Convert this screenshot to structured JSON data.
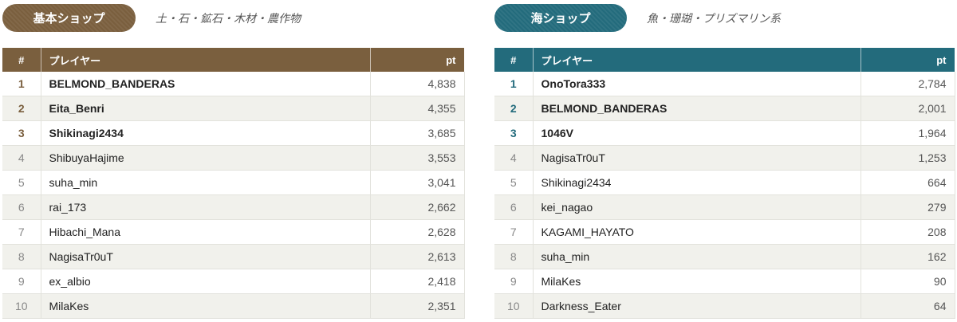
{
  "shops": [
    {
      "badge": "基本ショップ",
      "subtitle": "土・石・鉱石・木材・農作物",
      "table": {
        "header": [
          "#",
          "プレイヤー",
          "pt"
        ],
        "rows": [
          [
            "1",
            "BELMOND_BANDERAS",
            "4,838"
          ],
          [
            "2",
            "Eita_Benri",
            "4,355"
          ],
          [
            "3",
            "Shikinagi2434",
            "3,685"
          ],
          [
            "4",
            "ShibuyaHajime",
            "3,553"
          ],
          [
            "5",
            "suha_min",
            "3,041"
          ],
          [
            "6",
            "rai_173",
            "2,662"
          ],
          [
            "7",
            "Hibachi_Mana",
            "2,628"
          ],
          [
            "8",
            "NagisaTr0uT",
            "2,613"
          ],
          [
            "9",
            "ex_albio",
            "2,418"
          ],
          [
            "10",
            "MilaKes",
            "2,351"
          ]
        ]
      }
    },
    {
      "badge": "海ショップ",
      "subtitle": "魚・珊瑚・プリズマリン系",
      "table": {
        "header": [
          "#",
          "プレイヤー",
          "pt"
        ],
        "rows": [
          [
            "1",
            "OnoTora333",
            "2,784"
          ],
          [
            "2",
            "BELMOND_BANDERAS",
            "2,001"
          ],
          [
            "3",
            "1046V",
            "1,964"
          ],
          [
            "4",
            "NagisaTr0uT",
            "1,253"
          ],
          [
            "5",
            "Shikinagi2434",
            "664"
          ],
          [
            "6",
            "kei_nagao",
            "279"
          ],
          [
            "7",
            "KAGAMI_HAYATO",
            "208"
          ],
          [
            "8",
            "suha_min",
            "162"
          ],
          [
            "9",
            "MilaKes",
            "90"
          ],
          [
            "10",
            "Darkness_Eater",
            "64"
          ]
        ]
      }
    }
  ]
}
